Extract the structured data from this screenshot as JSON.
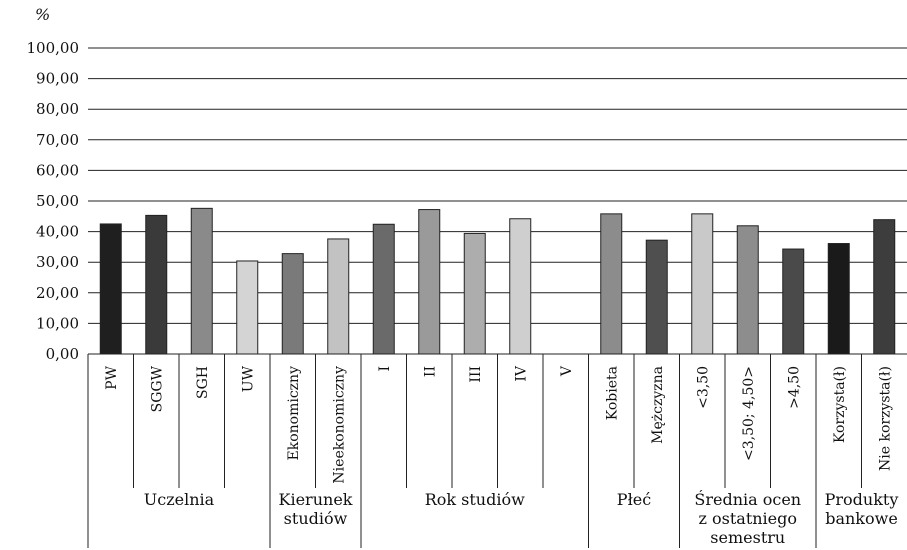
{
  "chart_data": {
    "type": "bar",
    "unit_label": "%",
    "ylim": [
      0,
      100
    ],
    "yticks": [
      "0,00",
      "10,00",
      "20,00",
      "30,00",
      "40,00",
      "50,00",
      "60,00",
      "70,00",
      "80,00",
      "90,00",
      "100,00"
    ],
    "grid": true,
    "categories": [
      "PW",
      "SGGW",
      "SGH",
      "UW",
      "Ekonomiczny",
      "Nieekonomiczny",
      "I",
      "II",
      "III",
      "IV",
      "V",
      "Kobieta",
      "Mężczyzna",
      "<3,50",
      "<3,50; 4,50>",
      ">4,50",
      "Korzysta(ł)",
      "Nie korzysta(ł)"
    ],
    "values": [
      42.5,
      45.3,
      47.6,
      30.4,
      32.8,
      37.6,
      42.4,
      47.2,
      39.4,
      44.2,
      0,
      45.8,
      37.2,
      45.8,
      41.9,
      34.3,
      36.1,
      43.9
    ],
    "colors": [
      "#1f1f1f",
      "#3a3a3a",
      "#8a8a8a",
      "#d4d4d4",
      "#7a7a7a",
      "#c2c2c2",
      "#6a6a6a",
      "#9a9a9a",
      "#adadad",
      "#cfcfcf",
      "#ffffff",
      "#8c8c8c",
      "#4f4f4f",
      "#c9c9c9",
      "#8d8d8d",
      "#4a4a4a",
      "#1a1a1a",
      "#3d3d3d"
    ],
    "groups": [
      {
        "label_lines": [
          "Uczelnia"
        ],
        "start": 0,
        "end": 3
      },
      {
        "label_lines": [
          "Kierunek",
          "studiów"
        ],
        "start": 4,
        "end": 5
      },
      {
        "label_lines": [
          "Rok studiów"
        ],
        "start": 6,
        "end": 10
      },
      {
        "label_lines": [
          "Płeć"
        ],
        "start": 11,
        "end": 12
      },
      {
        "label_lines": [
          "Średnia ocen",
          "z ostatniego",
          "semestru"
        ],
        "start": 13,
        "end": 15
      },
      {
        "label_lines": [
          "Produkty",
          "bankowe"
        ],
        "start": 16,
        "end": 17
      }
    ]
  }
}
